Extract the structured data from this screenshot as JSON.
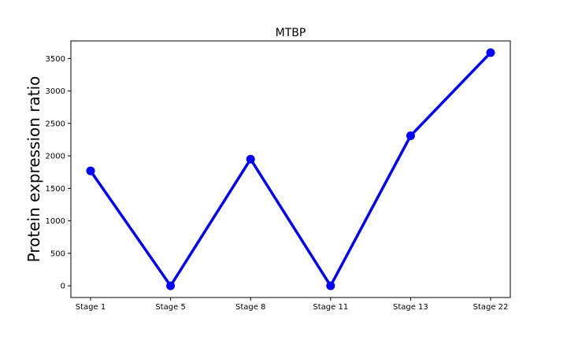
{
  "chart_data": {
    "type": "line",
    "title": "MTBP",
    "xlabel": "",
    "ylabel": "Protein expression ratio",
    "categories": [
      "Stage 1",
      "Stage 5",
      "Stage 8",
      "Stage 11",
      "Stage 13",
      "Stage 22"
    ],
    "series": [
      {
        "values": [
          1770,
          0,
          1950,
          0,
          2310,
          3590
        ],
        "color": "#0000ff"
      }
    ],
    "ylim": [
      -180,
      3770
    ],
    "yticks": [
      0,
      500,
      1000,
      1500,
      2000,
      2500,
      3000,
      3500
    ],
    "grid": false,
    "legend": "none"
  }
}
